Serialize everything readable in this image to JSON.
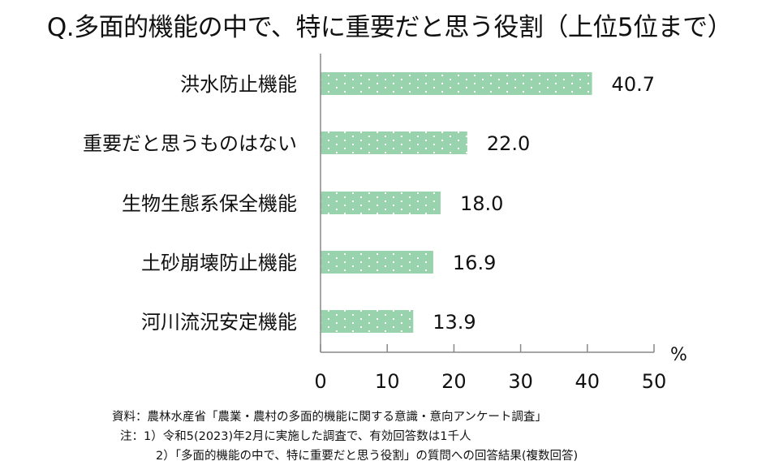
{
  "title": "Q.多面的機能の中で、特に重要だと思う役割（上位5位まで）",
  "chart_data": {
    "type": "bar",
    "orientation": "horizontal",
    "title": "Q.多面的機能の中で、特に重要だと思う役割（上位5位まで）",
    "categories": [
      "洪水防止機能",
      "重要だと思うものはない",
      "生物生態系保全機能",
      "土砂崩壊防止機能",
      "河川流況安定機能"
    ],
    "values": [
      40.7,
      22.0,
      18.0,
      16.9,
      13.9
    ],
    "value_labels": [
      "40.7",
      "22.0",
      "18.0",
      "16.9",
      "13.9"
    ],
    "xlabel": "%",
    "ylabel": "",
    "xlim": [
      0,
      50
    ],
    "xticks": [
      0,
      10,
      20,
      30,
      40,
      50
    ],
    "grid": false,
    "legend": null,
    "bar_color": "#99d3ae",
    "bar_pattern": "white-dots"
  },
  "notes": {
    "source": "資料：農林水産省「農業・農村の多面的機能に関する意識・意向アンケート調査」",
    "note1": "注：1）令和5(2023)年2月に実施した調査で、有効回答数は1千人",
    "note2": "2）「多面的機能の中で、特に重要だと思う役割」の質問への回答結果(複数回答)"
  }
}
